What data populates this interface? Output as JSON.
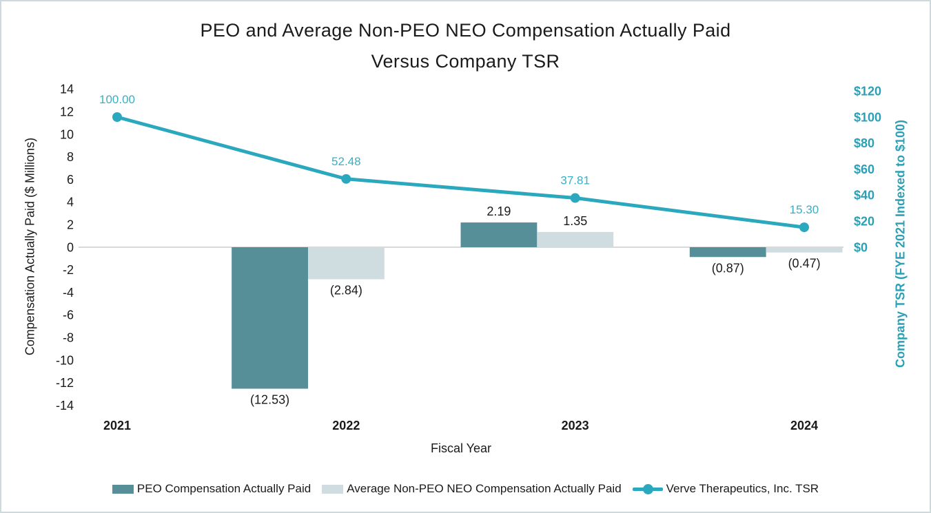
{
  "title": {
    "line1": "PEO and Average Non-PEO NEO Compensation Actually Paid",
    "line2": "Versus Company TSR"
  },
  "chart_data": {
    "type": "combo-bar-line",
    "title": "PEO and Average Non-PEO NEO Compensation Actually Paid Versus Company TSR",
    "categories": [
      "2021",
      "2022",
      "2023",
      "2024"
    ],
    "xlabel": "Fiscal Year",
    "left_axis": {
      "label": "Compensation Actually Paid ($ Millions)",
      "min": -14,
      "max": 14,
      "step": 2,
      "ticks": [
        "14",
        "12",
        "10",
        "8",
        "6",
        "4",
        "2",
        "0",
        "-2",
        "-4",
        "-6",
        "-8",
        "-10",
        "-12",
        "-14"
      ]
    },
    "right_axis": {
      "label": "Company TSR (FYE 2021 Indexed to $100)",
      "min": 0,
      "max": 120,
      "step": 20,
      "ticks": [
        "$120",
        "$100",
        "$80",
        "$60",
        "$40",
        "$20",
        "$0"
      ]
    },
    "grid": "zero-line-only",
    "legend_position": "bottom",
    "series": [
      {
        "name": "PEO Compensation Actually Paid",
        "type": "bar",
        "axis": "left",
        "color": "#578f98",
        "values": [
          null,
          -12.53,
          2.19,
          -0.87
        ],
        "data_labels": [
          "",
          "(12.53)",
          "2.19",
          "(0.87)"
        ]
      },
      {
        "name": "Average Non-PEO NEO Compensation Actually Paid",
        "type": "bar",
        "axis": "left",
        "color": "#cfdce0",
        "values": [
          null,
          -2.84,
          1.35,
          -0.47
        ],
        "data_labels": [
          "",
          "(2.84)",
          "1.35",
          "(0.47)"
        ]
      },
      {
        "name": "Verve Therapeutics, Inc. TSR",
        "type": "line",
        "axis": "right",
        "color": "#2ba8bd",
        "values": [
          100.0,
          52.48,
          37.81,
          15.3
        ],
        "data_labels": [
          "100.00",
          "52.48",
          "37.81",
          "15.30"
        ]
      }
    ],
    "colors": {
      "bar_peo": "#578f98",
      "bar_neo": "#cfdce0",
      "tsr_line": "#2ba8bd",
      "tsr_label": "#3aafc3",
      "right_axis": "#2b9fb5",
      "zero_line": "#d9d9d9",
      "text": "#1a1a1a",
      "frame_border": "#ccdade"
    }
  }
}
